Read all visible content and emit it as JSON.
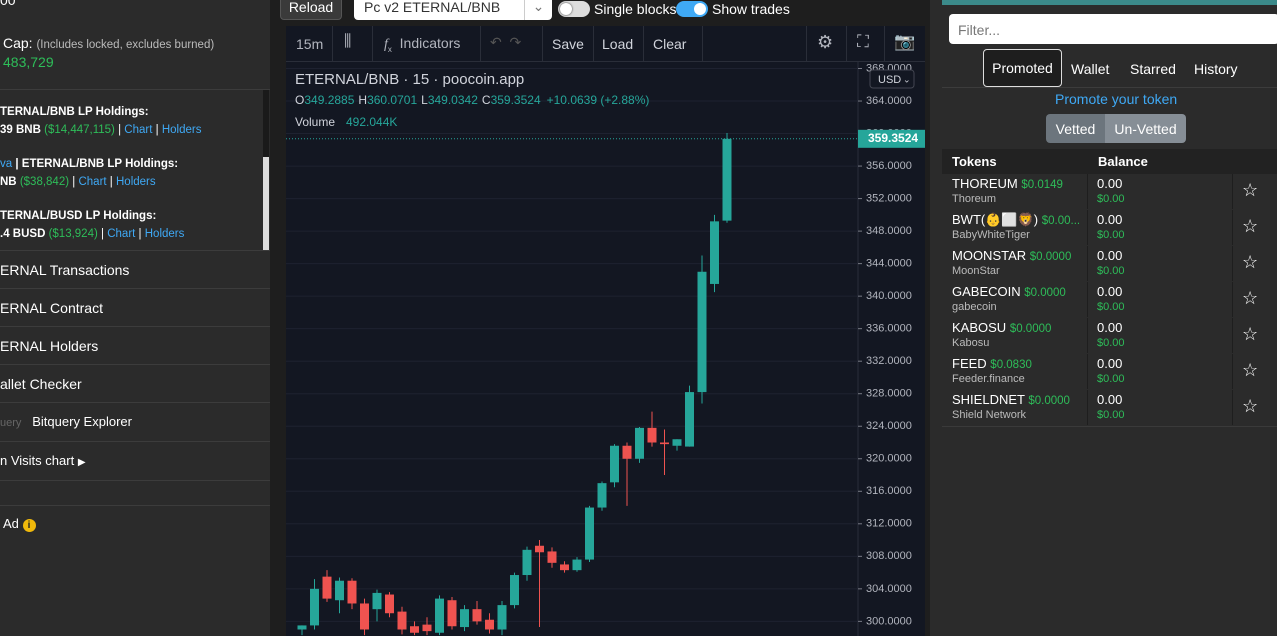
{
  "left_panel": {
    "top_cut": "00",
    "cap_label": "Cap:",
    "cap_note": "(Includes locked, excludes burned)",
    "cap_value": "483,729",
    "separator": "|",
    "holdings": [
      {
        "title_link": "",
        "title": "TERNAL/BNB LP Holdings:",
        "amount": "39 BNB",
        "usd": "($14,447,115)",
        "chart": "Chart",
        "holders": "Holders"
      },
      {
        "title_link": "va",
        "title": "| ETERNAL/BNB LP Holdings:",
        "amount": "NB",
        "usd": "($38,842)",
        "chart": "Chart",
        "holders": "Holders"
      },
      {
        "title_link": "",
        "title": "TERNAL/BUSD LP Holdings:",
        "amount": ".4 BUSD",
        "usd": "($13,924)",
        "chart": "Chart",
        "holders": "Holders"
      }
    ],
    "menu": [
      "ERNAL Transactions",
      "ERNAL Contract",
      "ERNAL Holders",
      "allet Checker"
    ],
    "bitquery_faint": "uery",
    "bitquery": "Bitquery Explorer",
    "visits": "n Visits chart",
    "ad": "Ad"
  },
  "top_bar": {
    "reload": "Reload",
    "pair_select": "Pc v2 ETERNAL/BNB",
    "single_blocks": "Single blocks",
    "show_trades": "Show trades"
  },
  "toolbar": {
    "interval": "15m",
    "indicators": "Indicators",
    "save": "Save",
    "load": "Load",
    "clear": "Clear"
  },
  "chart_data": {
    "type": "candlestick",
    "title": "ETERNAL/BNB · 15 · poocoin.app",
    "currency": "USD",
    "legend": {
      "o": "O",
      "h": "H",
      "l": "L",
      "c": "C",
      "change": "+10.0639 (+2.88%)"
    },
    "volume_label": "Volume",
    "volume_value": "492.044K",
    "up_color": "#26a69a",
    "down_color": "#ef5350",
    "open": [
      299.0,
      299.5,
      305.5,
      302.6,
      305.0,
      302.2,
      301.5,
      303.3,
      301.2,
      299.4,
      299.6,
      298.6,
      302.6,
      299.3,
      301.5,
      300.2,
      299.0,
      302.0,
      305.7,
      309.3,
      308.6,
      307.0,
      306.3,
      307.6,
      314.0,
      317.1,
      321.6,
      320.0,
      323.8,
      322.0,
      321.6,
      321.5,
      328.2,
      341.5,
      349.2885
    ],
    "high": [
      299.5,
      305.2,
      306.3,
      305.4,
      305.3,
      302.8,
      303.9,
      303.6,
      301.8,
      300.0,
      300.5,
      303.2,
      303.0,
      302.0,
      302.5,
      301.0,
      302.5,
      306.0,
      309.2,
      310.0,
      309.1,
      307.4,
      307.9,
      314.2,
      317.2,
      321.8,
      322.0,
      323.9,
      325.8,
      323.6,
      322.4,
      329.0,
      345.0,
      350.0,
      360.0701
    ],
    "low": [
      298.3,
      299.0,
      302.4,
      301.0,
      301.5,
      298.3,
      300.0,
      300.5,
      298.4,
      298.3,
      298.3,
      298.3,
      299.0,
      298.8,
      299.6,
      298.5,
      298.3,
      301.6,
      305.0,
      299.3,
      306.6,
      306.0,
      306.1,
      307.3,
      313.6,
      316.5,
      314.2,
      319.5,
      321.5,
      318.0,
      321.0,
      321.5,
      326.8,
      340.5,
      349.0342
    ],
    "close": [
      299.5,
      304.0,
      302.8,
      305.0,
      302.2,
      299.0,
      303.5,
      301.0,
      299.0,
      298.6,
      298.8,
      302.8,
      299.4,
      301.5,
      300.0,
      299.0,
      302.0,
      305.7,
      308.8,
      308.5,
      307.2,
      306.3,
      307.6,
      314.0,
      317.0,
      321.6,
      320.0,
      323.8,
      322.0,
      321.8,
      322.4,
      328.2,
      343.0,
      349.2,
      359.3524
    ],
    "ylim": [
      298.2,
      368.8
    ],
    "yticks": [
      {
        "value": 300,
        "label": "300.0000"
      },
      {
        "value": 304,
        "label": "304.0000"
      },
      {
        "value": 308,
        "label": "308.0000"
      },
      {
        "value": 312,
        "label": "312.0000"
      },
      {
        "value": 316,
        "label": "316.0000"
      },
      {
        "value": 320,
        "label": "320.0000"
      },
      {
        "value": 324,
        "label": "324.0000"
      },
      {
        "value": 328,
        "label": "328.0000"
      },
      {
        "value": 332,
        "label": "332.0000"
      },
      {
        "value": 336,
        "label": "336.0000"
      },
      {
        "value": 340,
        "label": "340.0000"
      },
      {
        "value": 344,
        "label": "344.0000"
      },
      {
        "value": 348,
        "label": "348.0000"
      },
      {
        "value": 352,
        "label": "352.0000"
      },
      {
        "value": 356,
        "label": "356.0000"
      },
      {
        "value": 360,
        "label": "360.0000"
      },
      {
        "value": 364,
        "label": "364.0000"
      },
      {
        "value": 368,
        "label": "368.0000"
      }
    ],
    "grid": true
  },
  "right_panel": {
    "filter_placeholder": "Filter...",
    "tabs": [
      "Promoted",
      "Wallet",
      "Starred",
      "History"
    ],
    "promote": "Promote your token",
    "vetted": "Vetted",
    "unvetted": "Un-Vetted",
    "table_headers": [
      "Tokens",
      "Balance"
    ],
    "tokens": [
      {
        "symbol": "THOREUM",
        "price": "$0.0149",
        "name": "Thoreum",
        "balance": "0.00",
        "value": "$0.00"
      },
      {
        "symbol": "BWT(👶⬜🦁)",
        "price": "$0.00...",
        "name": "BabyWhiteTiger",
        "balance": "0.00",
        "value": "$0.00"
      },
      {
        "symbol": "MOONSTAR",
        "price": "$0.0000",
        "name": "MoonStar",
        "balance": "0.00",
        "value": "$0.00"
      },
      {
        "symbol": "GABECOIN",
        "price": "$0.0000",
        "name": "gabecoin",
        "balance": "0.00",
        "value": "$0.00"
      },
      {
        "symbol": "KABOSU",
        "price": "$0.0000",
        "name": "Kabosu",
        "balance": "0.00",
        "value": "$0.00"
      },
      {
        "symbol": "FEED",
        "price": "$0.0830",
        "name": "Feeder.finance",
        "balance": "0.00",
        "value": "$0.00"
      },
      {
        "symbol": "SHIELDNET",
        "price": "$0.0000",
        "name": "Shield Network",
        "balance": "0.00",
        "value": "$0.00"
      }
    ]
  }
}
